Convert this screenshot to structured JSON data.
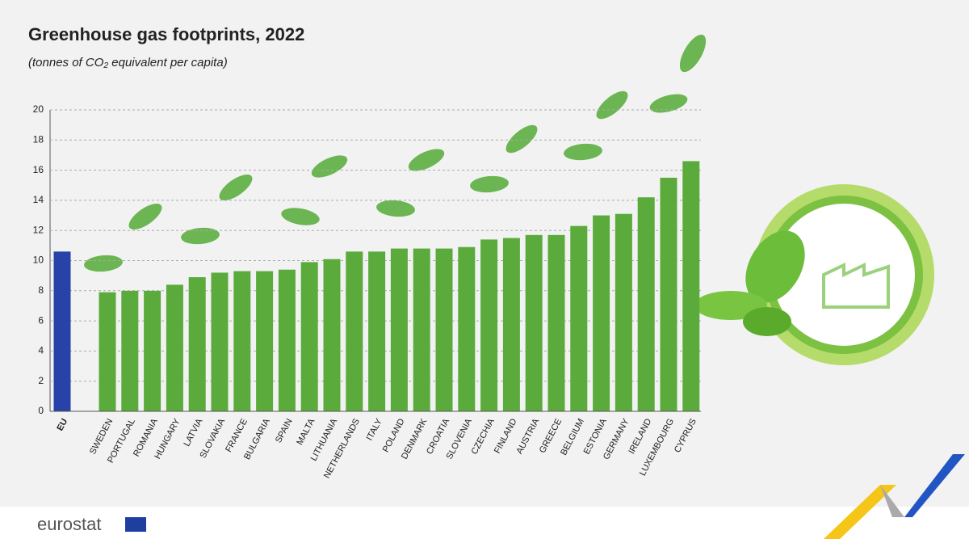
{
  "chart_data": {
    "type": "bar",
    "title": "Greenhouse gas footprints, 2022",
    "subtitle": "(tonnes of CO₂ equivalent per capita)",
    "categories": [
      "EU",
      "SWEDEN",
      "PORTUGAL",
      "ROMANIA",
      "HUNGARY",
      "LATVIA",
      "SLOVAKIA",
      "FRANCE",
      "BULGARIA",
      "SPAIN",
      "MALTA",
      "LITHUANIA",
      "NETHERLANDS",
      "ITALY",
      "POLAND",
      "DENMARK",
      "CROATIA",
      "SLOVENIA",
      "CZECHIA",
      "FINLAND",
      "AUSTRIA",
      "GREECE",
      "BELGIUM",
      "ESTONIA",
      "GERMANY",
      "IRELAND",
      "LUXEMBOURG",
      "CYPRUS"
    ],
    "values": [
      10.6,
      7.9,
      8.0,
      8.0,
      8.4,
      8.9,
      9.2,
      9.3,
      9.3,
      9.4,
      9.9,
      10.1,
      10.6,
      10.6,
      10.8,
      10.8,
      10.8,
      10.9,
      11.4,
      11.5,
      11.7,
      11.7,
      12.3,
      13.0,
      13.1,
      14.2,
      15.5,
      16.6
    ],
    "colors": [
      "#2742a8",
      "#5aab3c",
      "#5aab3c",
      "#5aab3c",
      "#5aab3c",
      "#5aab3c",
      "#5aab3c",
      "#5aab3c",
      "#5aab3c",
      "#5aab3c",
      "#5aab3c",
      "#5aab3c",
      "#5aab3c",
      "#5aab3c",
      "#5aab3c",
      "#5aab3c",
      "#5aab3c",
      "#5aab3c",
      "#5aab3c",
      "#5aab3c",
      "#5aab3c",
      "#5aab3c",
      "#5aab3c",
      "#5aab3c",
      "#5aab3c",
      "#5aab3c",
      "#5aab3c",
      "#5aab3c"
    ],
    "ylim": [
      0,
      20
    ],
    "yticks": [
      0,
      2,
      4,
      6,
      8,
      10,
      12,
      14,
      16,
      18,
      20
    ],
    "grid": true
  },
  "footer": {
    "brand": "eurostat"
  }
}
